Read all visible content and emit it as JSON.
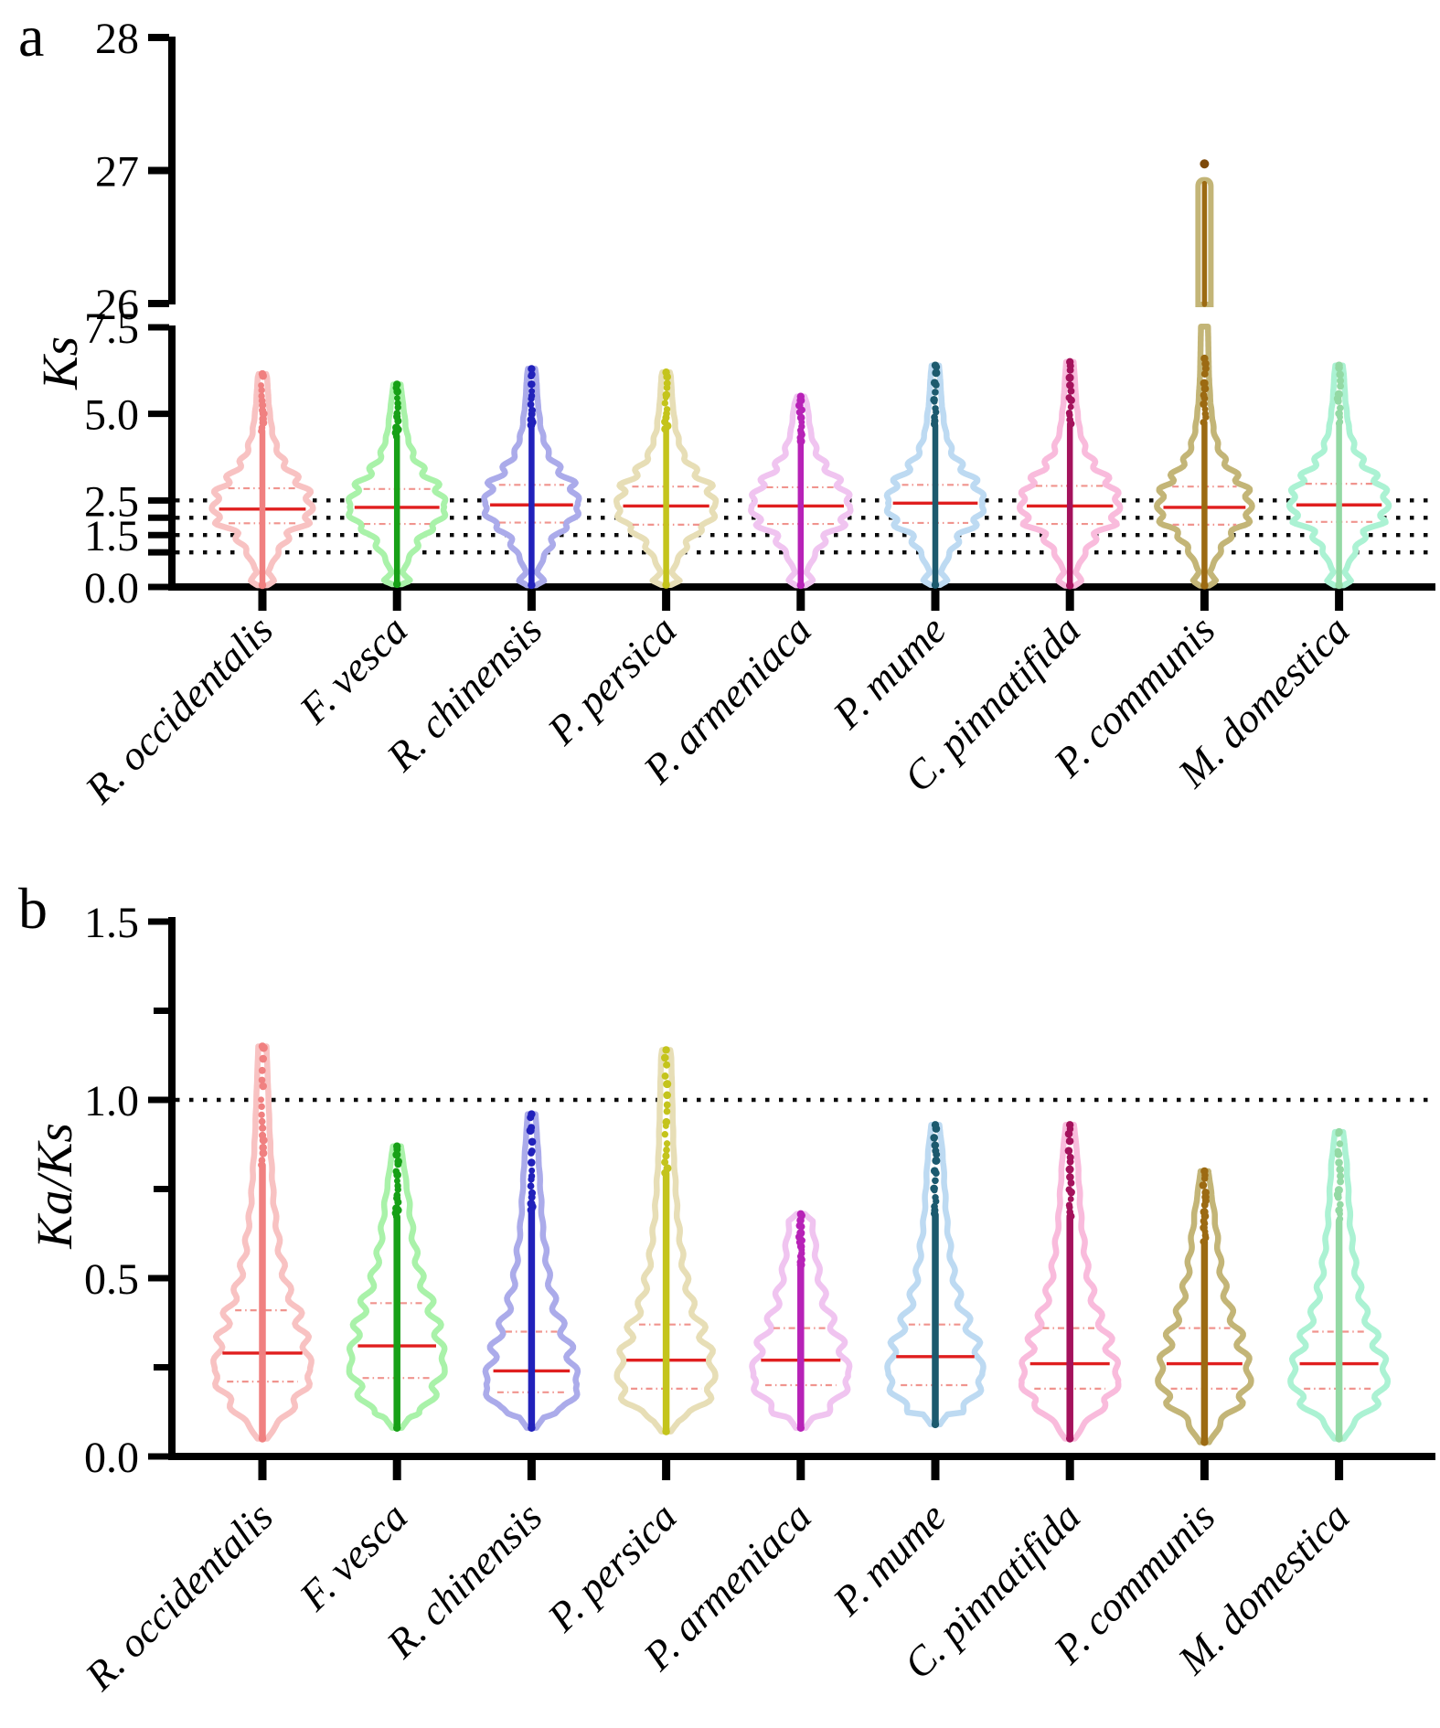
{
  "figure": {
    "panel_a_letter": "a",
    "panel_b_letter": "b"
  },
  "styles": {
    "background": "#FFFFFF",
    "axis_color": "#000000",
    "grid_color": "#0A0A0A",
    "median_color": "#E01F1F",
    "quartile_color": "#F0948E"
  },
  "chart_data": [
    {
      "panel": "a",
      "type": "violin",
      "ylabel": "Ks",
      "y_axis": {
        "broken_axis": true,
        "lower_segment": {
          "range": [
            0,
            7.5
          ],
          "labeled_ticks": [
            {
              "value": 7.5,
              "label": "7.5"
            },
            {
              "value": 5.0,
              "label": "5.0"
            },
            {
              "value": 2.5,
              "label": "2.5"
            },
            {
              "value": 1.5,
              "label": "1.5"
            },
            {
              "value": 0.0,
              "label": "0.0"
            }
          ],
          "minor_ticks": [
            2.0,
            1.0
          ]
        },
        "upper_segment": {
          "range": [
            26,
            28
          ],
          "labeled_ticks": [
            {
              "value": 28,
              "label": "28"
            },
            {
              "value": 27,
              "label": "27"
            },
            {
              "value": 26,
              "label": "26"
            }
          ]
        }
      },
      "gridlines": [
        2.5,
        2.0,
        1.5,
        1.0
      ],
      "series": [
        {
          "name": "R. occidentalis",
          "outline_color": "#F8C2C2",
          "dot_color": "#F08080",
          "min": 0.05,
          "q1": 1.84,
          "median": 2.25,
          "q3": 2.85,
          "max": 6.15
        },
        {
          "name": "F. vesca",
          "outline_color": "#A9F2A9",
          "dot_color": "#17A017",
          "min": 0.08,
          "q1": 1.82,
          "median": 2.3,
          "q3": 2.83,
          "max": 5.85
        },
        {
          "name": "R. chinensis",
          "outline_color": "#ABABEA",
          "dot_color": "#2121BB",
          "min": 0.05,
          "q1": 1.86,
          "median": 2.37,
          "q3": 2.95,
          "max": 6.3
        },
        {
          "name": "P. persica",
          "outline_color": "#E7DEB6",
          "dot_color": "#C4C41C",
          "min": 0.06,
          "q1": 1.8,
          "median": 2.34,
          "q3": 2.9,
          "max": 6.2
        },
        {
          "name": "P. armeniaca",
          "outline_color": "#F0C4F0",
          "dot_color": "#B722B7",
          "min": 0.05,
          "q1": 1.82,
          "median": 2.34,
          "q3": 2.88,
          "max": 5.5
        },
        {
          "name": "P. mume",
          "outline_color": "#BDDAF2",
          "dot_color": "#1C5A6E",
          "min": 0.06,
          "q1": 1.85,
          "median": 2.42,
          "q3": 2.95,
          "max": 6.4
        },
        {
          "name": "C. pinnatifida",
          "outline_color": "#F9BBDC",
          "dot_color": "#A4125C",
          "min": 0.04,
          "q1": 1.82,
          "median": 2.34,
          "q3": 2.92,
          "max": 6.5
        },
        {
          "name": "P. communis",
          "outline_color": "#C3B577",
          "dot_color": "#9C6A12",
          "min": 0.04,
          "q1": 1.8,
          "median": 2.3,
          "q3": 2.9,
          "max": 27.05,
          "upper_tube_top": 26.93,
          "outlier_dot": 27.05,
          "lower_tail_top": 6.6
        },
        {
          "name": "M. domestica",
          "outline_color": "#ABF2D3",
          "dot_color": "#93D9A4",
          "min": 0.05,
          "q1": 1.88,
          "median": 2.37,
          "q3": 2.98,
          "max": 6.4
        }
      ]
    },
    {
      "panel": "b",
      "type": "violin",
      "ylabel": "Ka/Ks",
      "y_axis": {
        "broken_axis": false,
        "lower_segment": {
          "range": [
            0,
            1.5
          ],
          "labeled_ticks": [
            {
              "value": 1.5,
              "label": "1.5"
            },
            {
              "value": 1.0,
              "label": "1.0"
            },
            {
              "value": 0.5,
              "label": "0.5"
            },
            {
              "value": 0.0,
              "label": "0.0"
            }
          ],
          "minor_ticks": [
            1.25,
            0.75,
            0.25
          ]
        }
      },
      "gridlines": [
        1.0
      ],
      "series": [
        {
          "name": "R. occidentalis",
          "outline_color": "#F8C2C2",
          "dot_color": "#F08080",
          "min": 0.05,
          "q1": 0.21,
          "median": 0.29,
          "q3": 0.41,
          "max": 1.15
        },
        {
          "name": "F. vesca",
          "outline_color": "#A9F2A9",
          "dot_color": "#17A017",
          "min": 0.08,
          "q1": 0.22,
          "median": 0.31,
          "q3": 0.43,
          "max": 0.87
        },
        {
          "name": "R. chinensis",
          "outline_color": "#ABABEA",
          "dot_color": "#2121BB",
          "min": 0.08,
          "q1": 0.18,
          "median": 0.24,
          "q3": 0.35,
          "max": 0.96
        },
        {
          "name": "P. persica",
          "outline_color": "#E7DEB6",
          "dot_color": "#C4C41C",
          "min": 0.07,
          "q1": 0.19,
          "median": 0.27,
          "q3": 0.37,
          "max": 1.14
        },
        {
          "name": "P. armeniaca",
          "outline_color": "#F0C4F0",
          "dot_color": "#B722B7",
          "min": 0.08,
          "q1": 0.2,
          "median": 0.27,
          "q3": 0.36,
          "max": 0.68
        },
        {
          "name": "P. mume",
          "outline_color": "#BDDAF2",
          "dot_color": "#1C5A6E",
          "min": 0.09,
          "q1": 0.2,
          "median": 0.28,
          "q3": 0.37,
          "max": 0.93
        },
        {
          "name": "C. pinnatifida",
          "outline_color": "#F9BBDC",
          "dot_color": "#A4125C",
          "min": 0.05,
          "q1": 0.19,
          "median": 0.26,
          "q3": 0.36,
          "max": 0.93
        },
        {
          "name": "P. communis",
          "outline_color": "#C3B577",
          "dot_color": "#9C6A12",
          "min": 0.04,
          "q1": 0.19,
          "median": 0.26,
          "q3": 0.36,
          "max": 0.8
        },
        {
          "name": "M. domestica",
          "outline_color": "#ABF2D3",
          "dot_color": "#93D9A4",
          "min": 0.05,
          "q1": 0.19,
          "median": 0.26,
          "q3": 0.35,
          "max": 0.91
        }
      ]
    }
  ]
}
